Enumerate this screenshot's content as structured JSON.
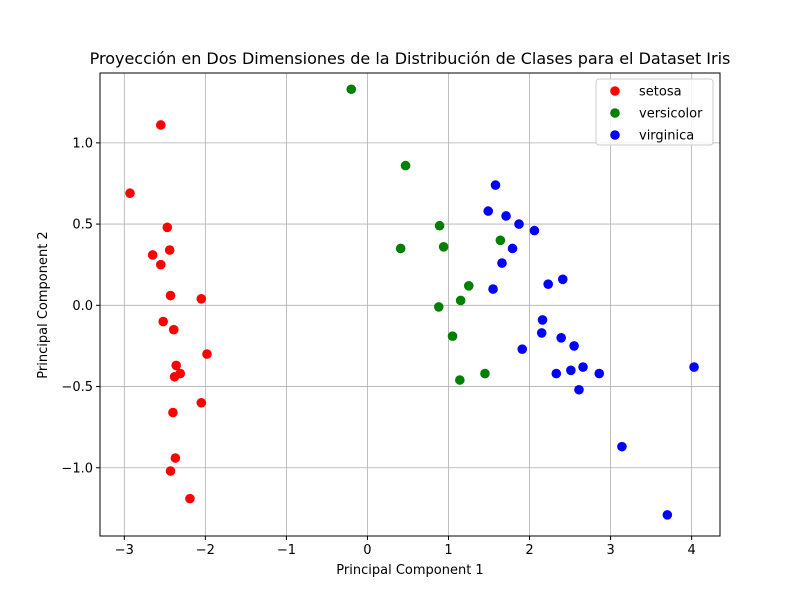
{
  "chart_data": {
    "type": "scatter",
    "title": "Proyección en Dos Dimensiones de la Distribución de Clases para el Dataset Iris",
    "xlabel": "Principal Component 1",
    "ylabel": "Principal Component 2",
    "xlim": [
      -3.3,
      4.35
    ],
    "ylim": [
      -1.42,
      1.43
    ],
    "xticks": [
      -3,
      -2,
      -1,
      0,
      1,
      2,
      3,
      4
    ],
    "xtick_labels": [
      "−3",
      "−2",
      "−1",
      "0",
      "1",
      "2",
      "3",
      "4"
    ],
    "yticks": [
      -1.0,
      -0.5,
      0.0,
      0.5,
      1.0
    ],
    "ytick_labels": [
      "−1.0",
      "−0.5",
      "0.0",
      "0.5",
      "1.0"
    ],
    "grid": true,
    "legend_position": "top-right",
    "series": [
      {
        "name": "setosa",
        "color": "#ff0000",
        "points": [
          [
            -2.55,
            1.11
          ],
          [
            -2.93,
            0.69
          ],
          [
            -2.47,
            0.48
          ],
          [
            -2.44,
            0.34
          ],
          [
            -2.65,
            0.31
          ],
          [
            -2.55,
            0.25
          ],
          [
            -2.43,
            0.06
          ],
          [
            -2.05,
            0.04
          ],
          [
            -2.52,
            -0.1
          ],
          [
            -2.39,
            -0.15
          ],
          [
            -1.98,
            -0.3
          ],
          [
            -2.36,
            -0.37
          ],
          [
            -2.31,
            -0.42
          ],
          [
            -2.38,
            -0.44
          ],
          [
            -2.4,
            -0.66
          ],
          [
            -2.05,
            -0.6
          ],
          [
            -2.37,
            -0.94
          ],
          [
            -2.43,
            -1.02
          ],
          [
            -2.19,
            -1.19
          ]
        ]
      },
      {
        "name": "versicolor",
        "color": "#008000",
        "points": [
          [
            -0.2,
            1.33
          ],
          [
            0.47,
            0.86
          ],
          [
            0.89,
            0.49
          ],
          [
            0.41,
            0.35
          ],
          [
            0.94,
            0.36
          ],
          [
            1.64,
            0.4
          ],
          [
            1.25,
            0.12
          ],
          [
            1.15,
            0.03
          ],
          [
            0.88,
            -0.01
          ],
          [
            1.05,
            -0.19
          ],
          [
            1.45,
            -0.42
          ],
          [
            1.14,
            -0.46
          ]
        ]
      },
      {
        "name": "virginica",
        "color": "#0000ff",
        "points": [
          [
            1.58,
            0.74
          ],
          [
            1.49,
            0.58
          ],
          [
            1.71,
            0.55
          ],
          [
            1.87,
            0.5
          ],
          [
            2.06,
            0.46
          ],
          [
            1.79,
            0.35
          ],
          [
            1.66,
            0.26
          ],
          [
            2.41,
            0.16
          ],
          [
            2.23,
            0.13
          ],
          [
            1.55,
            0.1
          ],
          [
            2.16,
            -0.09
          ],
          [
            2.15,
            -0.17
          ],
          [
            2.39,
            -0.2
          ],
          [
            2.55,
            -0.25
          ],
          [
            1.91,
            -0.27
          ],
          [
            2.66,
            -0.38
          ],
          [
            2.51,
            -0.4
          ],
          [
            2.33,
            -0.42
          ],
          [
            2.86,
            -0.42
          ],
          [
            2.61,
            -0.52
          ],
          [
            4.03,
            -0.38
          ],
          [
            3.14,
            -0.87
          ],
          [
            3.7,
            -1.29
          ]
        ]
      }
    ]
  }
}
